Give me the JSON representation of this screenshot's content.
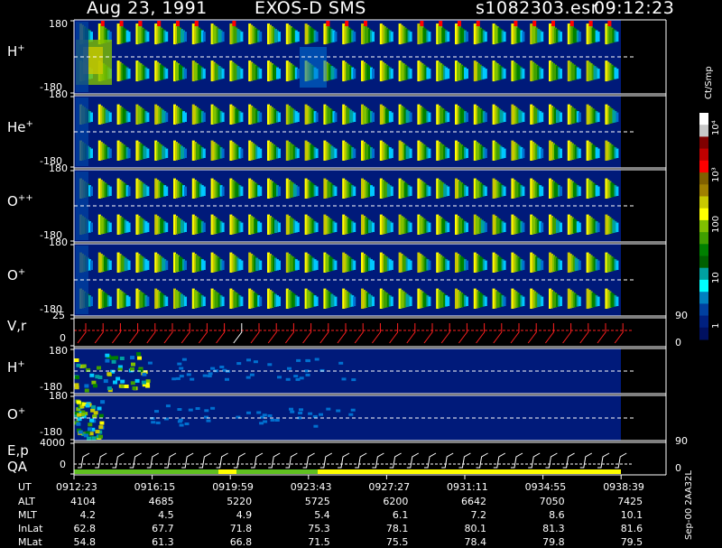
{
  "header": {
    "date": "Aug 23, 1991",
    "instrument": "EXOS-D SMS",
    "file": "s1082303.esr",
    "time": "09:12:23"
  },
  "panels": [
    {
      "id": "h",
      "label": "H",
      "sup": "+",
      "top": "180",
      "bottom": "-180"
    },
    {
      "id": "he",
      "label": "He",
      "sup": "+",
      "top": "180",
      "bottom": "-180"
    },
    {
      "id": "opp",
      "label": "O",
      "sup": "++",
      "top": "180",
      "bottom": "-180"
    },
    {
      "id": "op",
      "label": "O",
      "sup": "+",
      "top": "180",
      "bottom": "-180"
    },
    {
      "id": "vr",
      "label": "V,r",
      "sup": "",
      "top": "25",
      "bottom": "0",
      "right_top": "90",
      "right_bottom": "0"
    },
    {
      "id": "h2",
      "label": "H",
      "sup": "+",
      "top": "180",
      "bottom": "-180"
    },
    {
      "id": "o2",
      "label": "O",
      "sup": "+",
      "top": "180",
      "bottom": "-180"
    },
    {
      "id": "ep",
      "label": "E,p",
      "sup": "",
      "top": "4000",
      "bottom": "0",
      "right_top": "90",
      "right_bottom": "0"
    }
  ],
  "qa_label": "QA",
  "colorbar": {
    "unit": "Ct/Smp",
    "labels": [
      "10⁴",
      "10³",
      "100",
      "10",
      "1"
    ],
    "colors": [
      "#ffffff",
      "#c8c8c8",
      "#800000",
      "#c00000",
      "#ff0000",
      "#806000",
      "#a08000",
      "#c8c800",
      "#ffff00",
      "#80c000",
      "#40a000",
      "#008000",
      "#006000",
      "#00a0a0",
      "#00ffff",
      "#0080c0",
      "#0040a0",
      "#002080",
      "#001060"
    ]
  },
  "side_note": "Sep-00 2AA32L",
  "footer": {
    "row_labels": [
      "UT",
      "ALT",
      "MLT",
      "InLat",
      "MLat"
    ],
    "columns": [
      {
        "UT": "0912:23",
        "ALT": "4104",
        "MLT": "4.2",
        "InLat": "62.8",
        "MLat": "54.8"
      },
      {
        "UT": "0916:15",
        "ALT": "4685",
        "MLT": "4.5",
        "InLat": "67.7",
        "MLat": "61.3"
      },
      {
        "UT": "0919:59",
        "ALT": "5220",
        "MLT": "4.9",
        "InLat": "71.8",
        "MLat": "66.8"
      },
      {
        "UT": "0923:43",
        "ALT": "5725",
        "MLT": "5.4",
        "InLat": "75.3",
        "MLat": "71.5"
      },
      {
        "UT": "0927:27",
        "ALT": "6200",
        "MLT": "6.1",
        "InLat": "78.1",
        "MLat": "75.5"
      },
      {
        "UT": "0931:11",
        "ALT": "6642",
        "MLT": "7.2",
        "InLat": "80.1",
        "MLat": "78.4"
      },
      {
        "UT": "0934:55",
        "ALT": "7050",
        "MLT": "8.6",
        "InLat": "81.3",
        "MLat": "79.8"
      },
      {
        "UT": "0938:39",
        "ALT": "7425",
        "MLT": "10.1",
        "InLat": "81.6",
        "MLat": "79.5"
      }
    ]
  },
  "chart_data": {
    "type": "heatmap",
    "x": [
      "0912:23",
      "0916:15",
      "0919:59",
      "0923:43",
      "0927:27",
      "0931:11",
      "0934:55",
      "0938:39"
    ],
    "y_range": [
      -180,
      180
    ],
    "series": [
      {
        "name": "H+",
        "ylim": [
          -180,
          180
        ]
      },
      {
        "name": "He+",
        "ylim": [
          -180,
          180
        ]
      },
      {
        "name": "O++",
        "ylim": [
          -180,
          180
        ]
      },
      {
        "name": "O+",
        "ylim": [
          -180,
          180
        ]
      },
      {
        "name": "V,r",
        "ylim": [
          0,
          25
        ]
      },
      {
        "name": "H+",
        "ylim": [
          -180,
          180
        ]
      },
      {
        "name": "O+",
        "ylim": [
          -180,
          180
        ]
      },
      {
        "name": "E,p",
        "ylim": [
          0,
          4000
        ]
      }
    ],
    "colorbar_unit": "Ct/Smp",
    "colorbar_range": [
      1,
      10000
    ]
  }
}
